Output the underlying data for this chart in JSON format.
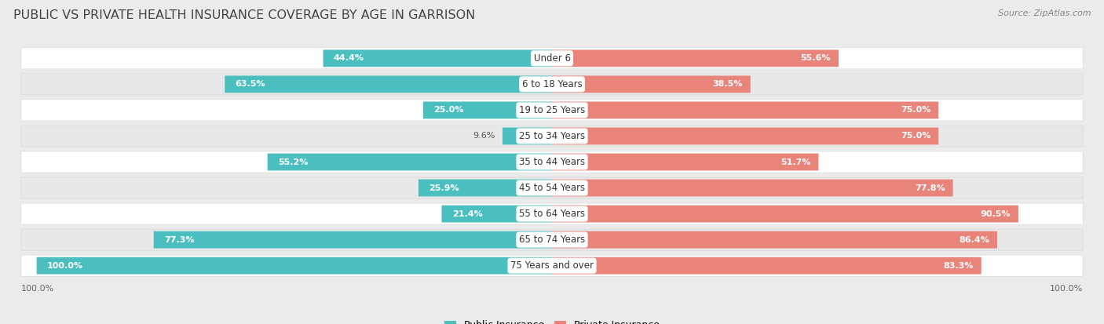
{
  "title": "PUBLIC VS PRIVATE HEALTH INSURANCE COVERAGE BY AGE IN GARRISON",
  "source": "Source: ZipAtlas.com",
  "categories": [
    "Under 6",
    "6 to 18 Years",
    "19 to 25 Years",
    "25 to 34 Years",
    "35 to 44 Years",
    "45 to 54 Years",
    "55 to 64 Years",
    "65 to 74 Years",
    "75 Years and over"
  ],
  "public_values": [
    44.4,
    63.5,
    25.0,
    9.6,
    55.2,
    25.9,
    21.4,
    77.3,
    100.0
  ],
  "private_values": [
    55.6,
    38.5,
    75.0,
    75.0,
    51.7,
    77.8,
    90.5,
    86.4,
    83.3
  ],
  "public_color": "#4bbfbf",
  "private_color": "#e8847a",
  "public_label": "Public Insurance",
  "private_label": "Private Insurance",
  "background_color": "#ebebeb",
  "row_colors": [
    "#ffffff",
    "#e8e8e8"
  ],
  "title_fontsize": 11.5,
  "label_fontsize": 8.5,
  "value_fontsize": 8,
  "source_fontsize": 8,
  "legend_fontsize": 9
}
